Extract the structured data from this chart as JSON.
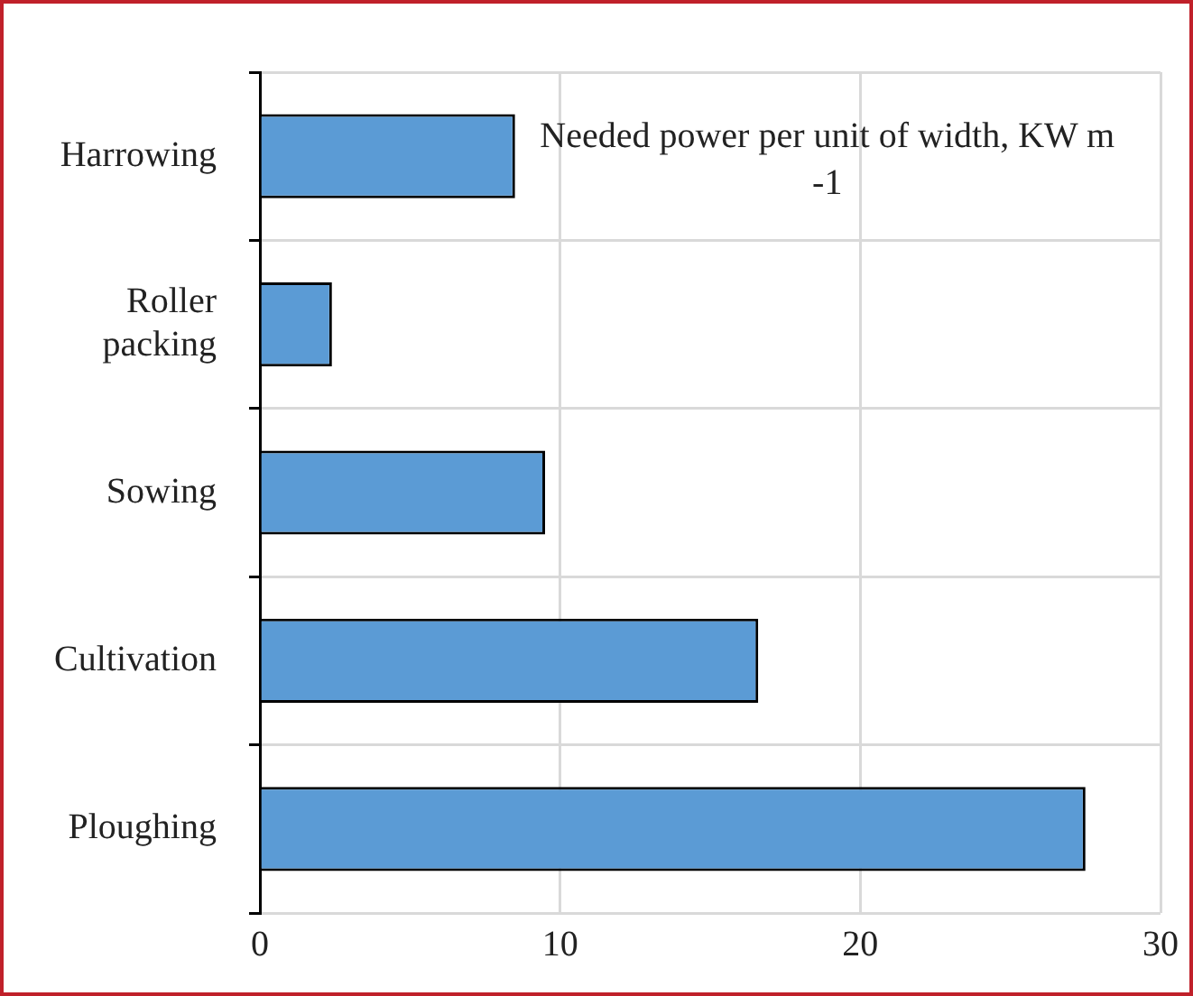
{
  "chart_data": {
    "type": "bar",
    "orientation": "horizontal",
    "title": "Needed power per unit of width, KW m -1",
    "categories": [
      "Harrowing",
      "Roller packing",
      "Sowing",
      "Cultivation",
      "Ploughing"
    ],
    "values": [
      8.5,
      2.4,
      9.5,
      16.6,
      27.5
    ],
    "color": "#5b9bd5",
    "xlim": [
      0,
      30
    ],
    "xticks": [
      0,
      10,
      20,
      30
    ],
    "grid": true,
    "legend": false
  }
}
